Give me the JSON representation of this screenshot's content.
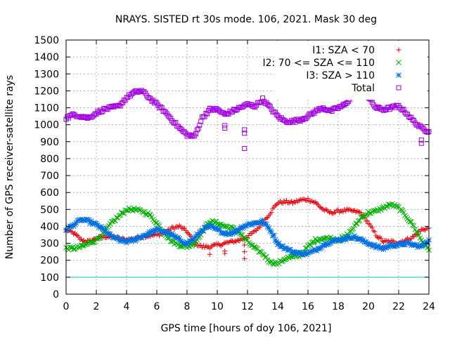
{
  "chart_data": {
    "type": "scatter",
    "title": "NRAYS. SISTED rt 30s mode. 106, 2021. Mask 30 deg",
    "xlabel": "GPS time [hours of doy 106, 2021]",
    "ylabel": "Number of GPS receiver-satellite rays",
    "xlim": [
      0,
      24
    ],
    "ylim": [
      0,
      1500
    ],
    "xticks": [
      "0",
      "2",
      "4",
      "6",
      "8",
      "10",
      "12",
      "14",
      "16",
      "18",
      "20",
      "22",
      "24"
    ],
    "yticks": [
      "0",
      "100",
      "200",
      "300",
      "400",
      "500",
      "600",
      "700",
      "800",
      "900",
      "1000",
      "1100",
      "1200",
      "1300",
      "1400",
      "1500"
    ],
    "grid": true,
    "legend_position": "top-right",
    "reference_line": {
      "y": 100,
      "color": "#00c8c8"
    },
    "series": [
      {
        "name": "I1: SZA < 70",
        "marker": "+",
        "color": "#e8000b",
        "x": [
          0,
          0.5,
          1,
          1.5,
          2,
          2.5,
          3,
          3.5,
          4,
          4.5,
          5,
          5.5,
          6,
          6.5,
          7,
          7.5,
          8,
          8.5,
          9,
          9.5,
          10,
          10.5,
          11,
          11.5,
          12,
          12.5,
          13,
          13.5,
          14,
          14.5,
          15,
          15.5,
          16,
          16.5,
          17,
          17.5,
          18,
          18.5,
          19,
          19.5,
          20,
          20.5,
          21,
          21.5,
          22,
          22.5,
          23,
          23.5,
          24
        ],
        "y": [
          380,
          360,
          320,
          310,
          330,
          340,
          340,
          330,
          320,
          330,
          340,
          345,
          350,
          360,
          390,
          400,
          370,
          300,
          280,
          280,
          290,
          300,
          310,
          320,
          340,
          370,
          420,
          480,
          540,
          545,
          540,
          555,
          560,
          540,
          500,
          480,
          490,
          495,
          490,
          480,
          420,
          350,
          310,
          310,
          305,
          320,
          340,
          380,
          390
        ],
        "outliers": [
          [
            9.5,
            235
          ],
          [
            10.5,
            240
          ],
          [
            10.5,
            255
          ],
          [
            11.8,
            210
          ],
          [
            11.8,
            250
          ],
          [
            11.8,
            290
          ]
        ]
      },
      {
        "name": "I2: 70 <= SZA <= 110",
        "marker": "x",
        "color": "#00b000",
        "x": [
          0,
          0.5,
          1,
          1.5,
          2,
          2.5,
          3,
          3.5,
          4,
          4.5,
          5,
          5.5,
          6,
          6.5,
          7,
          7.5,
          8,
          8.5,
          9,
          9.5,
          10,
          10.5,
          11,
          11.5,
          12,
          12.5,
          13,
          13.5,
          14,
          14.5,
          15,
          15.5,
          16,
          16.5,
          17,
          17.5,
          18,
          18.5,
          19,
          19.5,
          20,
          20.5,
          21,
          21.5,
          22,
          22.5,
          23,
          23.5,
          24
        ],
        "y": [
          270,
          270,
          280,
          300,
          320,
          360,
          420,
          460,
          500,
          500,
          490,
          470,
          420,
          360,
          310,
          290,
          280,
          300,
          370,
          430,
          420,
          400,
          390,
          360,
          310,
          270,
          240,
          190,
          180,
          210,
          220,
          230,
          280,
          320,
          330,
          330,
          320,
          340,
          390,
          450,
          480,
          490,
          510,
          530,
          510,
          460,
          400,
          320,
          260
        ]
      },
      {
        "name": "I3: SZA > 110",
        "marker": "*",
        "color": "#0070e0",
        "x": [
          0,
          0.5,
          1,
          1.5,
          2,
          2.5,
          3,
          3.5,
          4,
          4.5,
          5,
          5.5,
          6,
          6.5,
          7,
          7.5,
          8,
          8.5,
          9,
          9.5,
          10,
          10.5,
          11,
          11.5,
          12,
          12.5,
          13,
          13.5,
          14,
          14.5,
          15,
          15.5,
          16,
          16.5,
          17,
          17.5,
          18,
          18.5,
          19,
          19.5,
          20,
          20.5,
          21,
          21.5,
          22,
          22.5,
          23,
          23.5,
          24
        ],
        "y": [
          380,
          410,
          440,
          430,
          410,
          380,
          340,
          320,
          310,
          320,
          340,
          360,
          380,
          370,
          350,
          320,
          300,
          330,
          380,
          400,
          380,
          360,
          360,
          390,
          410,
          420,
          430,
          380,
          300,
          270,
          250,
          240,
          240,
          260,
          290,
          310,
          320,
          330,
          340,
          320,
          300,
          280,
          270,
          290,
          290,
          300,
          290,
          280,
          320
        ]
      },
      {
        "name": "Total",
        "marker": "square",
        "color": "#a000e0",
        "x": [
          0,
          0.5,
          1,
          1.5,
          2,
          2.5,
          3,
          3.5,
          4,
          4.5,
          5,
          5.5,
          6,
          6.5,
          7,
          7.5,
          8,
          8.5,
          9,
          9.5,
          10,
          10.5,
          11,
          11.5,
          12,
          12.5,
          13,
          13.5,
          14,
          14.5,
          15,
          15.5,
          16,
          16.5,
          17,
          17.5,
          18,
          18.5,
          19,
          19.5,
          20,
          20.5,
          21,
          21.5,
          22,
          22.5,
          23,
          23.5,
          24
        ],
        "y": [
          1040,
          1060,
          1050,
          1040,
          1070,
          1090,
          1100,
          1110,
          1160,
          1190,
          1200,
          1160,
          1120,
          1080,
          1030,
          980,
          940,
          930,
          1040,
          1090,
          1090,
          1060,
          1080,
          1100,
          1120,
          1110,
          1150,
          1100,
          1050,
          1020,
          1020,
          1030,
          1050,
          1080,
          1100,
          1080,
          1100,
          1120,
          1190,
          1240,
          1160,
          1100,
          1090,
          1100,
          1110,
          1070,
          1020,
          980,
          960
        ],
        "outliers": [
          [
            10.5,
            980
          ],
          [
            10.5,
            995
          ],
          [
            11.8,
            860
          ],
          [
            11.8,
            950
          ],
          [
            11.8,
            970
          ],
          [
            23.5,
            890
          ],
          [
            23.5,
            910
          ]
        ]
      }
    ]
  }
}
